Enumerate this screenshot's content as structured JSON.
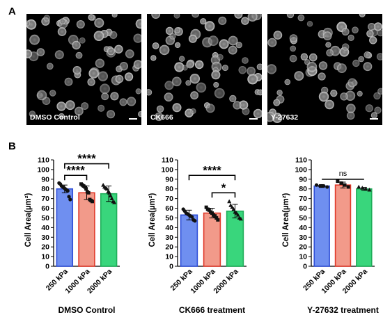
{
  "panel_labels": {
    "a": "A",
    "b": "B"
  },
  "micrographs": [
    {
      "label": "DMSO Control",
      "seed": 11
    },
    {
      "label": "CK666",
      "seed": 29
    },
    {
      "label": "Y-27632",
      "seed": 47
    }
  ],
  "chart_data": [
    {
      "type": "bar",
      "xlabel": "DMSO Control",
      "ylabel": "Cell Area(µm²)",
      "ylim": [
        0,
        110
      ],
      "yticks": [
        0,
        10,
        20,
        30,
        40,
        50,
        60,
        70,
        80,
        90,
        100,
        110
      ],
      "categories": [
        "250 kPa",
        "1000 kPa",
        "2000 kPa"
      ],
      "values": [
        80,
        76,
        75
      ],
      "errors": [
        4,
        7,
        8
      ],
      "colors": [
        "#6f8ff0",
        "#f29a8a",
        "#39d67c"
      ],
      "edge_colors": [
        "#2f4fd8",
        "#e03a2a",
        "#1fae5a"
      ],
      "points": [
        [
          86,
          85,
          83,
          82,
          81,
          80,
          79,
          78,
          72,
          69
        ],
        [
          85,
          84,
          83,
          82,
          80,
          77,
          76,
          69,
          68,
          67
        ],
        [
          84,
          82,
          81,
          80,
          77,
          76,
          73,
          70,
          67,
          66
        ]
      ],
      "markers": [
        "circle",
        "square",
        "triangle"
      ],
      "significance": [
        {
          "from": 0,
          "to": 1,
          "label": "****",
          "y": 94
        },
        {
          "from": 0,
          "to": 2,
          "label": "****",
          "y": 106
        }
      ]
    },
    {
      "type": "bar",
      "xlabel": "CK666 treatment",
      "ylabel": "Cell Area(µm²)",
      "ylim": [
        0,
        110
      ],
      "yticks": [
        0,
        10,
        20,
        30,
        40,
        50,
        60,
        70,
        80,
        90,
        100,
        110
      ],
      "categories": [
        "250 kPa",
        "1000 kPa",
        "2000 kPa"
      ],
      "values": [
        53,
        55,
        57
      ],
      "errors": [
        5,
        5,
        7
      ],
      "colors": [
        "#6f8ff0",
        "#f29a8a",
        "#39d67c"
      ],
      "edge_colors": [
        "#2f4fd8",
        "#e03a2a",
        "#1fae5a"
      ],
      "points": [
        [
          59,
          57,
          55,
          54,
          53,
          52,
          51,
          48,
          47
        ],
        [
          61,
          59,
          58,
          56,
          55,
          53,
          52,
          50,
          48
        ],
        [
          67,
          63,
          61,
          59,
          56,
          55,
          53,
          50,
          49
        ]
      ],
      "markers": [
        "circle",
        "square",
        "triangle"
      ],
      "significance": [
        {
          "from": 0,
          "to": 2,
          "label": "****",
          "y": 94
        },
        {
          "from": 1,
          "to": 2,
          "label": "*",
          "y": 76
        }
      ]
    },
    {
      "type": "bar",
      "xlabel": "Y-27632 treatment",
      "ylabel": "Cell Area(µm²)",
      "ylim": [
        0,
        110
      ],
      "yticks": [
        0,
        10,
        20,
        30,
        40,
        50,
        60,
        70,
        80,
        90,
        100,
        110
      ],
      "categories": [
        "250 kPa",
        "1000 kPa",
        "2000 kPa"
      ],
      "values": [
        83,
        84,
        80
      ],
      "errors": [
        1.5,
        3,
        1.5
      ],
      "colors": [
        "#6f8ff0",
        "#f29a8a",
        "#39d67c"
      ],
      "edge_colors": [
        "#2f4fd8",
        "#e03a2a",
        "#1fae5a"
      ],
      "points": [
        [
          84,
          83,
          83,
          82
        ],
        [
          88,
          86,
          84,
          82
        ],
        [
          82,
          81,
          80,
          79
        ]
      ],
      "markers": [
        "circle",
        "square",
        "triangle"
      ],
      "significance": [
        {
          "from": 0,
          "to": 2,
          "label": "ns",
          "y": 90
        }
      ]
    }
  ]
}
